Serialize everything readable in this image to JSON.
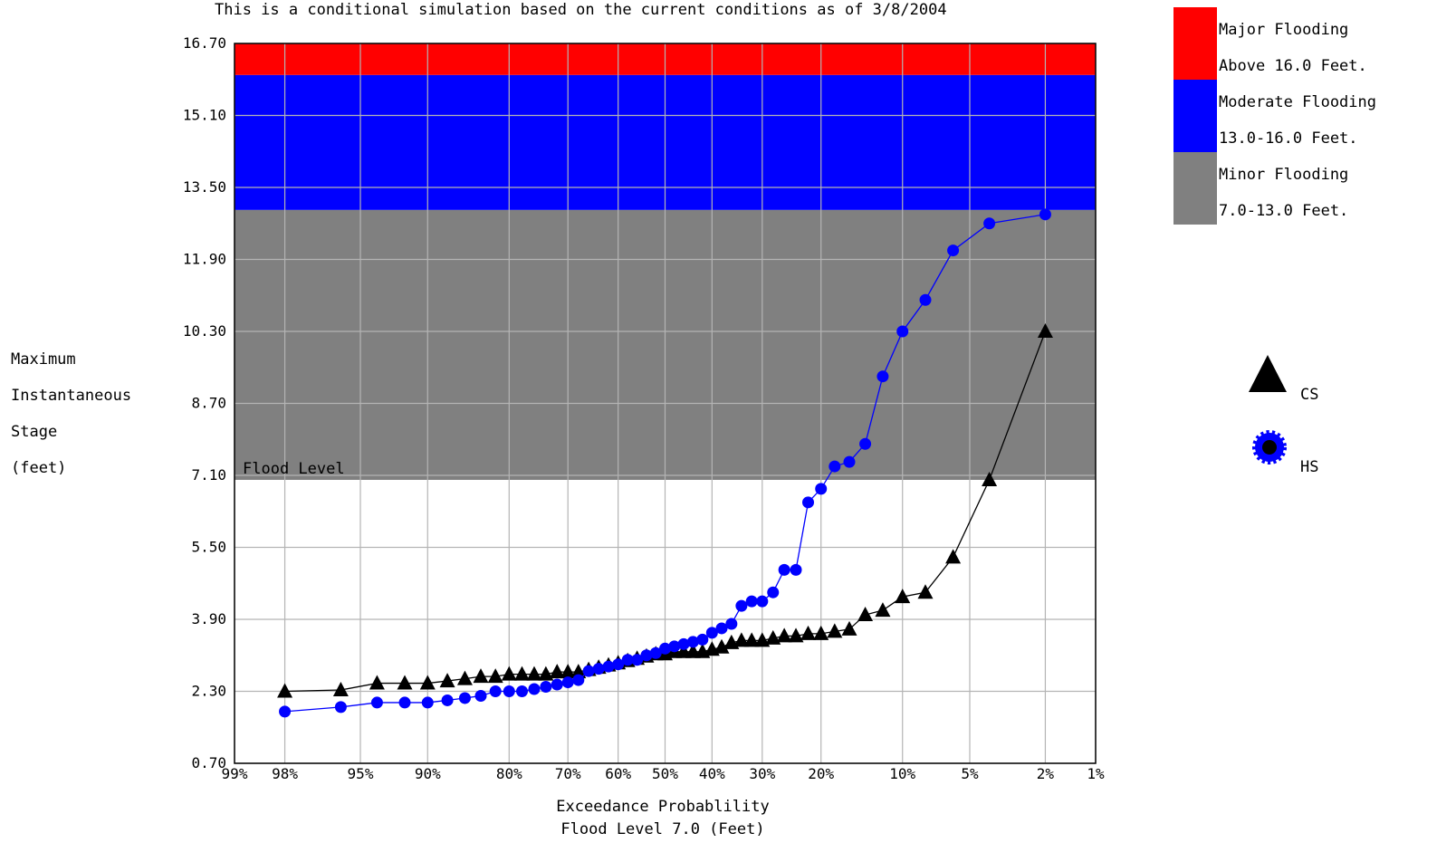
{
  "chart_data": {
    "type": "line",
    "title": "This is a conditional simulation based on the current conditions as of 3/8/2004",
    "ylabel_lines": [
      "Maximum",
      "Instantaneous",
      "Stage",
      "(feet)"
    ],
    "xlabel_lines": [
      "Exceedance Probablility",
      "Flood Level 7.0 (Feet)"
    ],
    "y_ticks": [
      "16.70",
      "15.10",
      "13.50",
      "11.90",
      "10.30",
      "8.70",
      "7.10",
      "5.50",
      "3.90",
      "2.30",
      "0.70"
    ],
    "ylim": [
      0.7,
      16.7
    ],
    "x_ticks": [
      {
        "p": 99,
        "label": "99%"
      },
      {
        "p": 98,
        "label": "98%"
      },
      {
        "p": 95,
        "label": "95%"
      },
      {
        "p": 90,
        "label": "90%"
      },
      {
        "p": 80,
        "label": "80%"
      },
      {
        "p": 70,
        "label": "70%"
      },
      {
        "p": 60,
        "label": "60%"
      },
      {
        "p": 50,
        "label": "50%"
      },
      {
        "p": 40,
        "label": "40%"
      },
      {
        "p": 30,
        "label": "30%"
      },
      {
        "p": 20,
        "label": "20%"
      },
      {
        "p": 10,
        "label": "10%"
      },
      {
        "p": 5,
        "label": "5%"
      },
      {
        "p": 2,
        "label": "2%"
      },
      {
        "p": 1,
        "label": "1%"
      }
    ],
    "x_scale": "normal probability",
    "grid": true,
    "bands": [
      {
        "from": 7.0,
        "to": 13.0,
        "color": "#808080"
      },
      {
        "from": 13.0,
        "to": 16.0,
        "color": "#0000ff"
      },
      {
        "from": 16.0,
        "to": 16.7,
        "color": "#ff0000"
      }
    ],
    "flood_level": {
      "value": 7.0,
      "label": "Flood Level"
    },
    "legend_bands": [
      {
        "color": "#ff0000",
        "line1": "Major Flooding",
        "line2": "Above 16.0 Feet."
      },
      {
        "color": "#0000ff",
        "line1": "Moderate Flooding",
        "line2": "13.0-16.0 Feet."
      },
      {
        "color": "#808080",
        "line1": "Minor Flooding",
        "line2": "7.0-13.0 Feet."
      }
    ],
    "series": [
      {
        "name": "CS",
        "marker": "triangle",
        "color": "#000000",
        "points": [
          [
            98,
            2.3
          ],
          [
            96,
            2.33
          ],
          [
            94,
            2.48
          ],
          [
            92,
            2.48
          ],
          [
            90,
            2.48
          ],
          [
            88,
            2.53
          ],
          [
            86,
            2.58
          ],
          [
            84,
            2.63
          ],
          [
            82,
            2.63
          ],
          [
            80,
            2.68
          ],
          [
            78,
            2.68
          ],
          [
            76,
            2.68
          ],
          [
            74,
            2.68
          ],
          [
            72,
            2.73
          ],
          [
            70,
            2.73
          ],
          [
            68,
            2.73
          ],
          [
            66,
            2.78
          ],
          [
            64,
            2.83
          ],
          [
            62,
            2.88
          ],
          [
            60,
            2.93
          ],
          [
            58,
            2.98
          ],
          [
            56,
            3.03
          ],
          [
            54,
            3.08
          ],
          [
            52,
            3.13
          ],
          [
            50,
            3.13
          ],
          [
            48,
            3.18
          ],
          [
            46,
            3.18
          ],
          [
            44,
            3.18
          ],
          [
            42,
            3.18
          ],
          [
            40,
            3.23
          ],
          [
            38,
            3.28
          ],
          [
            36,
            3.38
          ],
          [
            34,
            3.43
          ],
          [
            32,
            3.43
          ],
          [
            30,
            3.43
          ],
          [
            28,
            3.48
          ],
          [
            26,
            3.53
          ],
          [
            24,
            3.53
          ],
          [
            22,
            3.58
          ],
          [
            20,
            3.58
          ],
          [
            18,
            3.63
          ],
          [
            16,
            3.68
          ],
          [
            14,
            4.0
          ],
          [
            12,
            4.1
          ],
          [
            10,
            4.4
          ],
          [
            8,
            4.5
          ],
          [
            6,
            5.28
          ],
          [
            4,
            7.0
          ],
          [
            2,
            10.3
          ]
        ]
      },
      {
        "name": "HS",
        "marker": "circle",
        "color": "#0000ff",
        "points": [
          [
            98,
            1.85
          ],
          [
            96,
            1.95
          ],
          [
            94,
            2.05
          ],
          [
            92,
            2.05
          ],
          [
            90,
            2.05
          ],
          [
            88,
            2.1
          ],
          [
            86,
            2.15
          ],
          [
            84,
            2.2
          ],
          [
            82,
            2.3
          ],
          [
            80,
            2.3
          ],
          [
            78,
            2.3
          ],
          [
            76,
            2.35
          ],
          [
            74,
            2.4
          ],
          [
            72,
            2.45
          ],
          [
            70,
            2.5
          ],
          [
            68,
            2.55
          ],
          [
            66,
            2.75
          ],
          [
            64,
            2.8
          ],
          [
            62,
            2.85
          ],
          [
            60,
            2.9
          ],
          [
            58,
            3.0
          ],
          [
            56,
            3.0
          ],
          [
            54,
            3.1
          ],
          [
            52,
            3.15
          ],
          [
            50,
            3.25
          ],
          [
            48,
            3.3
          ],
          [
            46,
            3.35
          ],
          [
            44,
            3.4
          ],
          [
            42,
            3.45
          ],
          [
            40,
            3.6
          ],
          [
            38,
            3.7
          ],
          [
            36,
            3.8
          ],
          [
            34,
            4.2
          ],
          [
            32,
            4.3
          ],
          [
            30,
            4.3
          ],
          [
            28,
            4.5
          ],
          [
            26,
            5.0
          ],
          [
            24,
            5.0
          ],
          [
            22,
            6.5
          ],
          [
            20,
            6.8
          ],
          [
            18,
            7.3
          ],
          [
            16,
            7.4
          ],
          [
            14,
            7.8
          ],
          [
            12,
            9.3
          ],
          [
            10,
            10.3
          ],
          [
            8,
            11.0
          ],
          [
            6,
            12.1
          ],
          [
            4,
            12.7
          ],
          [
            2,
            12.9
          ]
        ]
      }
    ]
  }
}
